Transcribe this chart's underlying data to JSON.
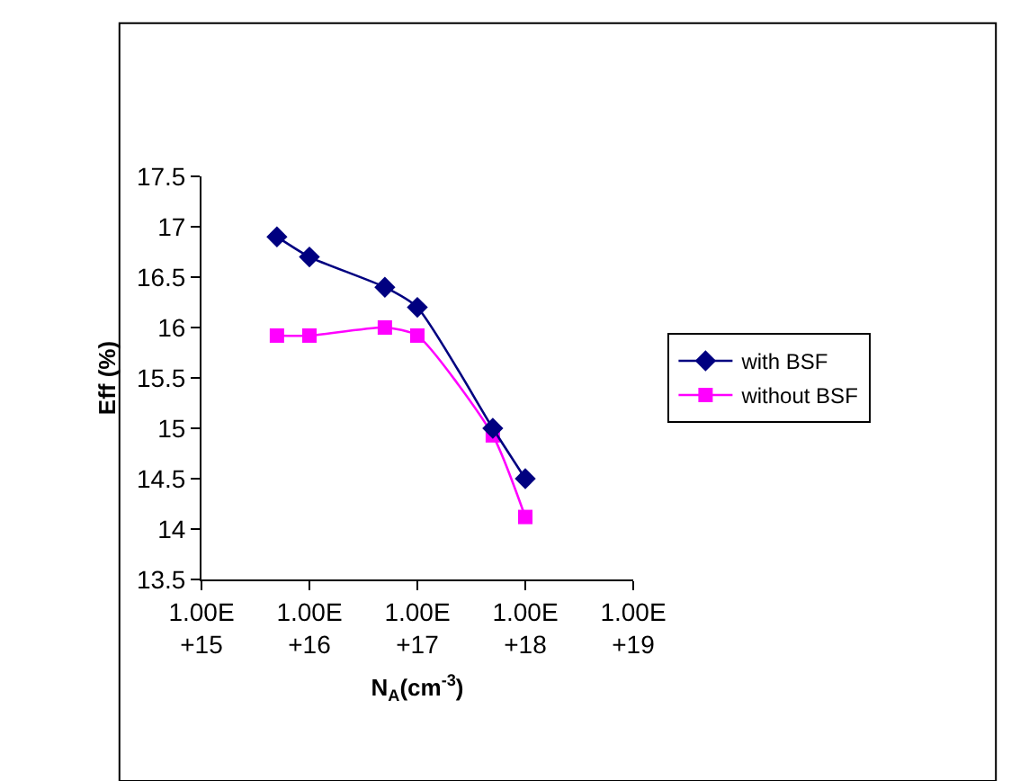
{
  "chart_data": {
    "type": "line",
    "xlabel": "N$_{A}$(cm$^{-3}$)",
    "ylabel": "Eff (%)",
    "x": [
      5000000000000000.0,
      1e+16,
      5e+16,
      1e+17,
      5e+17,
      1e+18
    ],
    "series": [
      {
        "name": "with BSF",
        "color": "#000080",
        "values": [
          16.9,
          16.7,
          16.4,
          16.2,
          15.0,
          14.5
        ],
        "marker": "diamond"
      },
      {
        "name": "without BSF",
        "color": "#ff00ff",
        "values": [
          15.92,
          15.92,
          16.0,
          15.92,
          14.93,
          14.12
        ],
        "marker": "square"
      }
    ],
    "log": "x",
    "xlim": [
      1000000000000000.0,
      1e+19
    ],
    "xticks": [
      {
        "value": 1000000000000000.0,
        "label": "1.00E+15"
      },
      {
        "value": 1e+16,
        "label": "1.00E+16"
      },
      {
        "value": 1e+17,
        "label": "1.00E+17"
      },
      {
        "value": 1e+18,
        "label": "1.00E+18"
      },
      {
        "value": 1e+19,
        "label": "1.00E+19"
      }
    ],
    "ylim": [
      13.5,
      17.5
    ],
    "yticks": [
      13.5,
      14,
      14.5,
      15,
      15.5,
      16,
      16.5,
      17,
      17.5
    ],
    "grid": false,
    "legend": "right",
    "line_style": "solid"
  }
}
